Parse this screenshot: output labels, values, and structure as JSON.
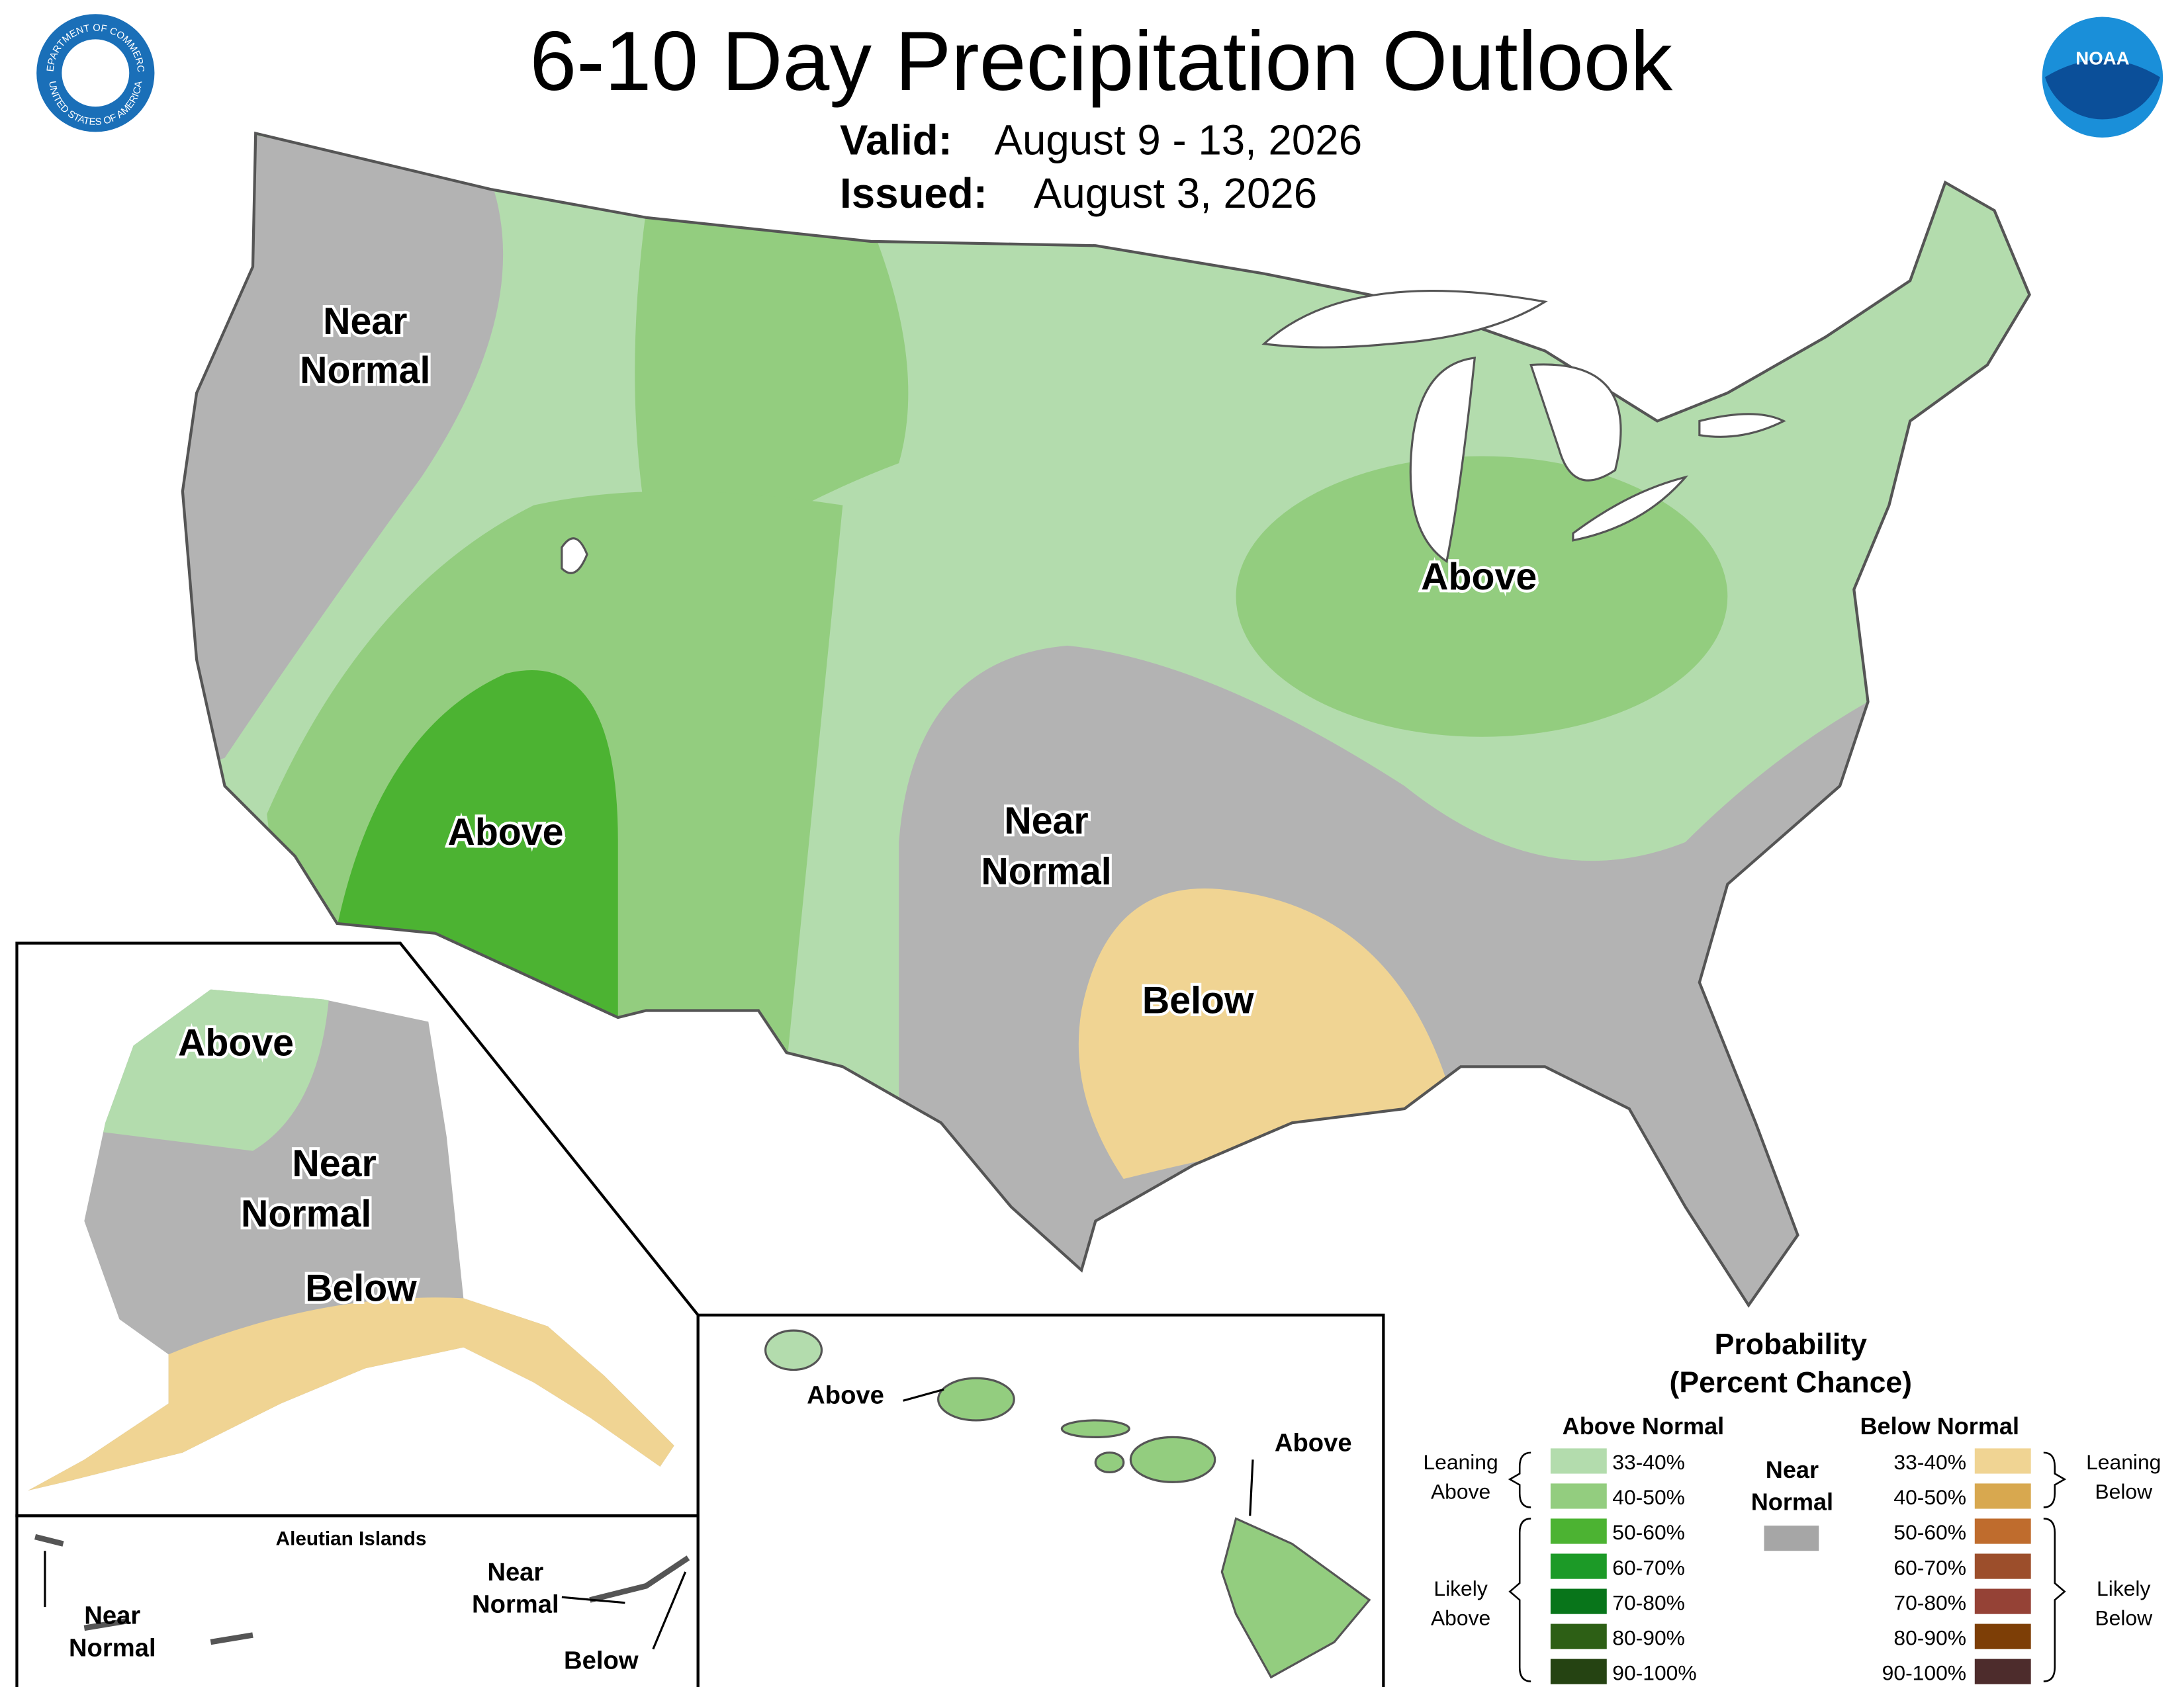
{
  "header": {
    "title": "6-10 Day Precipitation Outlook",
    "valid_label": "Valid:",
    "valid": "August 9 - 13, 2026",
    "issued_label": "Issued:",
    "issued": "August 3, 2026",
    "commerce_seal": [
      "DEPARTMENT OF COMMERCE",
      "UNITED STATES OF AMERICA"
    ],
    "noaa_logo": "NOAA"
  },
  "map_labels": [
    {
      "lines": [
        "Near",
        "Normal"
      ]
    },
    {
      "lines": [
        "Above"
      ]
    },
    {
      "lines": [
        "Near",
        "Normal"
      ]
    },
    {
      "lines": [
        "Above"
      ]
    },
    {
      "lines": [
        "Below"
      ]
    },
    {
      "lines": [
        "Above"
      ]
    },
    {
      "lines": [
        "Near",
        "Normal"
      ]
    },
    {
      "lines": [
        "Below"
      ]
    },
    {
      "lines": [
        "Above"
      ]
    },
    {
      "lines": [
        "Above"
      ]
    },
    {
      "lines": [
        "Near",
        "Normal"
      ]
    },
    {
      "lines": [
        "Near",
        "Normal"
      ]
    },
    {
      "lines": [
        "Below"
      ]
    }
  ],
  "insets": {
    "aleutian_title": "Aleutian Islands"
  },
  "legend": {
    "title": [
      "Probability",
      "(Percent Chance)"
    ],
    "above": {
      "heading": "Above Normal",
      "items": [
        {
          "label": "33-40%",
          "color": "#b3dcad"
        },
        {
          "label": "40-50%",
          "color": "#93cd7f"
        },
        {
          "label": "50-60%",
          "color": "#4cb332"
        },
        {
          "label": "60-70%",
          "color": "#1c9a27"
        },
        {
          "label": "70-80%",
          "color": "#08751a"
        },
        {
          "label": "80-90%",
          "color": "#2d5f15"
        },
        {
          "label": "90-100%",
          "color": "#254312"
        }
      ]
    },
    "below": {
      "heading": "Below Normal",
      "items": [
        {
          "label": "33-40%",
          "color": "#f0d493"
        },
        {
          "label": "40-50%",
          "color": "#d8a84f"
        },
        {
          "label": "50-60%",
          "color": "#bf6c2d"
        },
        {
          "label": "60-70%",
          "color": "#9c4e2b"
        },
        {
          "label": "70-80%",
          "color": "#954236"
        },
        {
          "label": "80-90%",
          "color": "#7d3e06"
        },
        {
          "label": "90-100%",
          "color": "#4d2c2c"
        }
      ]
    },
    "near": {
      "lines": [
        "Near",
        "Normal"
      ],
      "color": "#b3b3b3"
    },
    "leaning_above": [
      "Leaning",
      "Above"
    ],
    "likely_above": [
      "Likely",
      "Above"
    ],
    "leaning_below": [
      "Leaning",
      "Below"
    ],
    "likely_below": [
      "Likely",
      "Below"
    ]
  }
}
